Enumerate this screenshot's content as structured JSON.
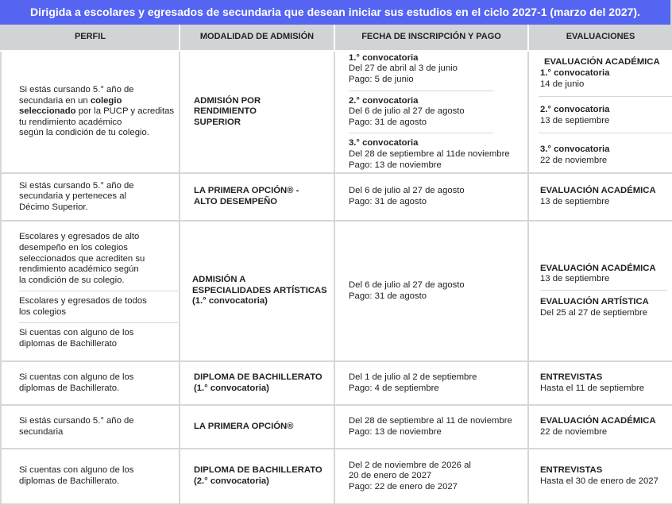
{
  "title": "Dirigida a escolares y egresados de secundaria que desean iniciar sus estudios en el ciclo 2027-1 (marzo del 2027).",
  "headers": [
    "PERFIL",
    "MODALIDAD DE ADMISIÓN",
    "FECHA DE INSCRIPCIÓN Y PAGO",
    "EVALUACIONES"
  ],
  "rows": [
    {
      "perfil_a": "Si estás cursando 5.° año de\nsecundaria en un ",
      "perfil_bold": "colegio\nseleccionado",
      "perfil_b": " por la PUCP y acreditas\ntu rendimiento académico\nsegún la condición de tu colegio.",
      "modalidad": "ADMISIÓN POR\nRENDIMIENTO\nSUPERIOR",
      "fechas": [
        {
          "conv": "1.° convocatoria",
          "text": "Del 27 de abril al 3 de junio\nPago: 5 de junio"
        },
        {
          "conv": "2.° convocatoria",
          "text": "Del 6 de julio al 27 de agosto\nPago: 31 de agosto"
        },
        {
          "conv": "3.° convocatoria",
          "text": "Del 28 de septiembre al 11de noviembre\nPago: 13 de noviembre"
        }
      ],
      "eval_title": "EVALUACIÓN ACADÉMICA",
      "evals": [
        {
          "conv": "1.° convocatoria",
          "text": "14 de junio"
        },
        {
          "conv": "2.° convocatoria",
          "text": "13 de septiembre"
        },
        {
          "conv": "3.° convocatoria",
          "text": "22 de noviembre"
        }
      ]
    },
    {
      "perfil": "Si estás cursando 5.° año de\nsecundaria y perteneces al\nDécimo Superior.",
      "modalidad": "LA PRIMERA OPCIÓN® -\nALTO DESEMPEÑO",
      "fecha": "Del 6 de julio al 27 de agosto\nPago: 31 de agosto",
      "eval_title": "EVALUACIÓN ACADÉMICA",
      "eval": "13 de septiembre"
    },
    {
      "perfiles": [
        "Escolares y egresados de alto\ndesempeño en los colegios\nseleccionados que acrediten su\nrendimiento académico según\nla condición de su colegio.",
        "Escolares y egresados de todos\nlos colegios",
        "Si cuentas con alguno de los\ndiplomas de Bachillerato"
      ],
      "modalidad": "ADMISIÓN A\nESPECIALIDADES ARTÍSTICAS\n(1.° convocatoria)",
      "fecha": "Del 6 de julio al 27 de agosto\nPago: 31 de agosto",
      "evals": [
        {
          "title": "EVALUACIÓN ACADÉMICA",
          "text": "13 de septiembre"
        },
        {
          "title": "EVALUACIÓN ARTÍSTICA",
          "text": "Del 25 al 27 de septiembre"
        }
      ]
    },
    {
      "perfil": "Si cuentas con alguno de los\ndiplomas de Bachillerato.",
      "modalidad": "DIPLOMA DE BACHILLERATO\n(1.° convocatoria)",
      "fecha": "Del 1 de julio al 2 de septiembre\nPago: 4 de septiembre",
      "eval_title": "ENTREVISTAS",
      "eval": "Hasta el 11 de septiembre"
    },
    {
      "perfil": "Si estás cursando 5.° año de\nsecundaria",
      "modalidad": "LA PRIMERA OPCIÓN®",
      "fecha": "Del 28 de septiembre al 11 de noviembre\nPago: 13 de noviembre",
      "eval_title": "EVALUACIÓN ACADÉMICA",
      "eval": "22 de noviembre"
    },
    {
      "perfil": "Si cuentas con alguno de los\ndiplomas de Bachillerato.",
      "modalidad": "DIPLOMA DE BACHILLERATO\n(2.° convocatoria)",
      "fecha": "Del 2 de noviembre de 2026 al\n20 de enero de 2027\nPago: 22 de enero de 2027",
      "eval_title": "ENTREVISTAS",
      "eval": "Hasta el 30 de enero de 2027"
    }
  ]
}
